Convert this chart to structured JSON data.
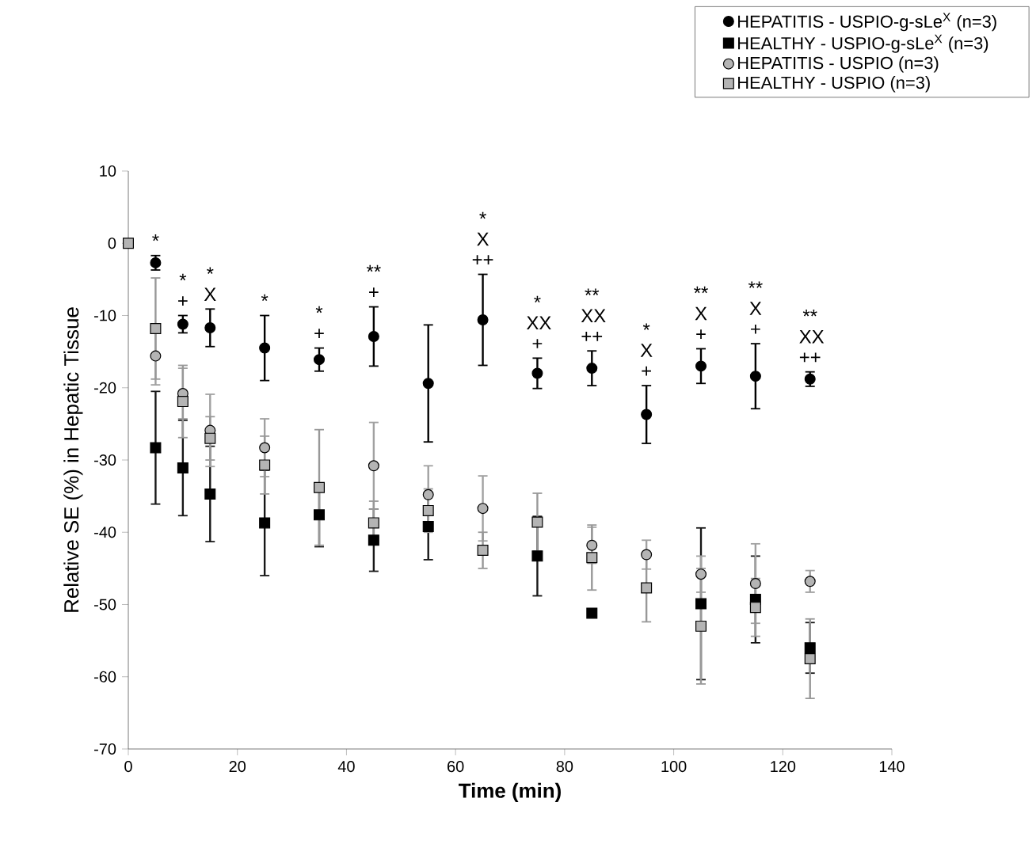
{
  "chart_data": {
    "type": "scatter",
    "xlabel": "Time (min)",
    "ylabel": "Relative SE (%) in Hepatic Tissue",
    "x": [
      0,
      5,
      10,
      15,
      25,
      35,
      45,
      55,
      65,
      75,
      85,
      95,
      105,
      115,
      125
    ],
    "xlim": [
      0,
      140
    ],
    "xticks": [
      0,
      20,
      40,
      60,
      80,
      100,
      120,
      140
    ],
    "ylim": [
      -70,
      10
    ],
    "yticks": [
      -70,
      -60,
      -50,
      -40,
      -30,
      -20,
      -10,
      0,
      10
    ],
    "grid": false,
    "legend": "top right",
    "series": [
      {
        "name": "HEPATITIS - USPIO-g-sLe$^{X}$ (n=3)",
        "color": "#000000",
        "marker": "circle",
        "values": [
          null,
          -2.7,
          -11.2,
          -11.7,
          -14.5,
          -16.1,
          -12.9,
          -19.4,
          -10.6,
          -18.0,
          -17.3,
          -23.7,
          -17.0,
          -18.4,
          -18.8
        ],
        "errors": [
          null,
          1,
          1.2,
          2.6,
          4.5,
          1.6,
          4.1,
          8.1,
          6.3,
          2.1,
          2.4,
          4,
          2.4,
          4.5,
          1
        ],
        "value_labels": [
          null,
          "*",
          "* +",
          "* X",
          "*",
          "* +",
          "** +",
          null,
          "* X ++",
          "* XX +",
          "** XX ++",
          "* X +",
          "** X +",
          "** X +",
          "** XX ++"
        ]
      },
      {
        "name": "HEALTHY - USPIO-g-sLe$^{X}$ (n=3)",
        "color": "#000000",
        "marker": "square",
        "values": [
          null,
          -28.3,
          -31.1,
          -34.7,
          -38.7,
          -37.6,
          -41.1,
          -39.2,
          null,
          -43.3,
          -51.2,
          null,
          -49.9,
          -49.3,
          -56
        ],
        "errors": [
          null,
          7.8,
          6.6,
          6.6,
          7.3,
          4.4,
          4.3,
          4.6,
          null,
          5.5,
          null,
          null,
          10.5,
          6,
          3.5
        ]
      },
      {
        "name": "HEPATITIS - USPIO (n=3)",
        "color": "#b4b4b4",
        "marker": "circle",
        "values": [
          null,
          -15.6,
          -20.8,
          -25.9,
          -28.3,
          null,
          -30.8,
          -34.8,
          -36.7,
          null,
          -41.8,
          -43.1,
          -45.8,
          -47.1,
          -46.8
        ],
        "errors": [
          null,
          4,
          3.5,
          5,
          4,
          null,
          6,
          4,
          4.5,
          null,
          2.5,
          2,
          2.5,
          5.5,
          1.5
        ]
      },
      {
        "name": "HEALTHY - USPIO (n=3)",
        "color": "#b4b4b4",
        "marker": "square",
        "values": [
          0,
          -11.8,
          -21.9,
          -27,
          -30.7,
          -33.8,
          -38.7,
          -37,
          -42.5,
          -38.6,
          -43.5,
          -47.7,
          -53,
          -50.4,
          -57.5
        ],
        "errors": [
          null,
          7,
          5,
          3,
          4,
          8,
          3,
          3,
          2.5,
          4,
          4.5,
          4.7,
          8,
          4,
          5.5
        ]
      }
    ]
  }
}
